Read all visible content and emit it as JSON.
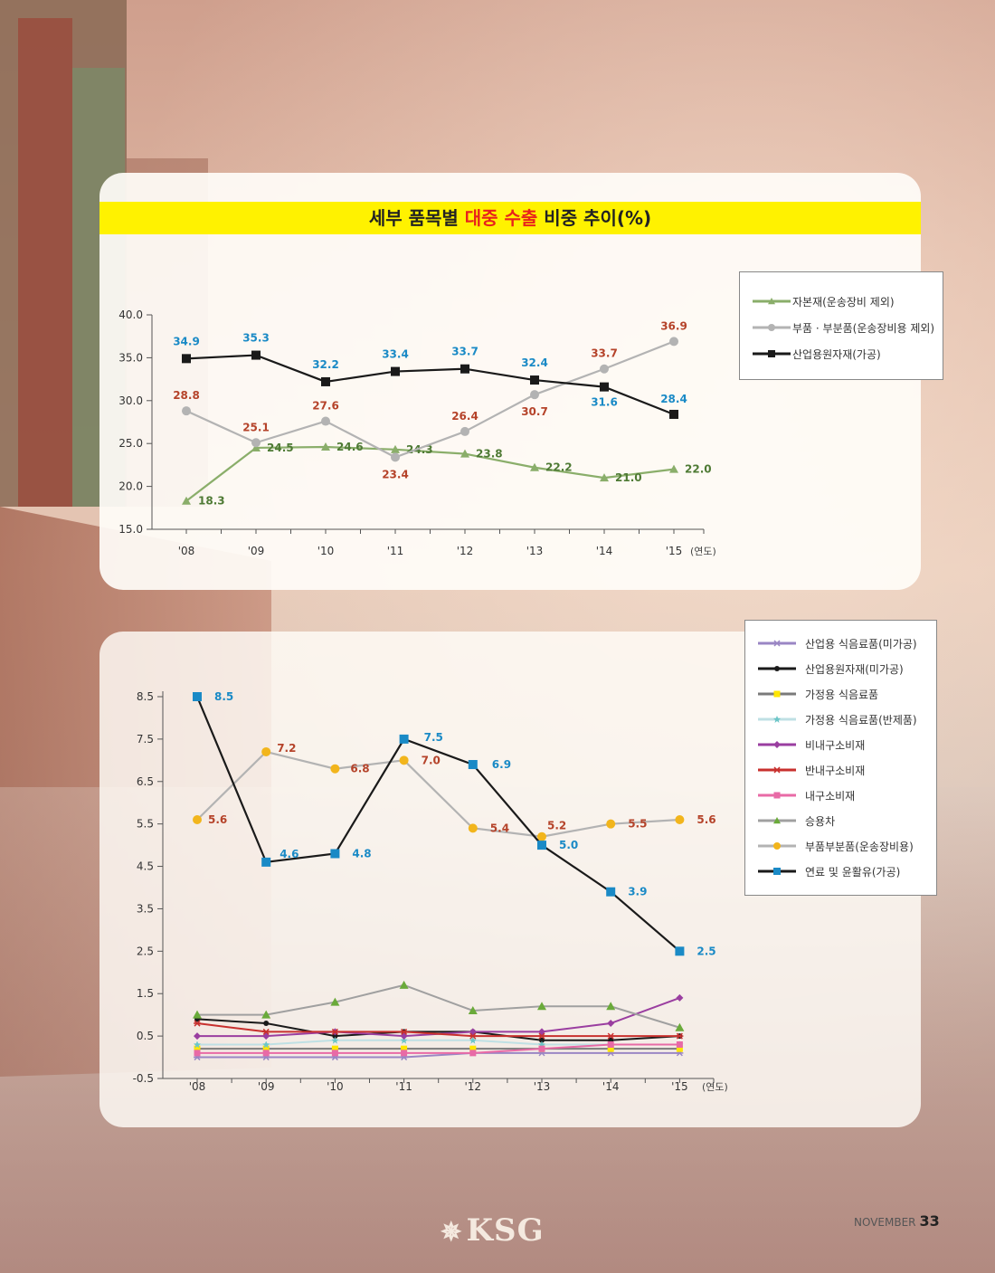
{
  "title": {
    "pre": "세부 품목별 ",
    "highlight": "대중 수출",
    "post": " 비중 추이(%)"
  },
  "chart_data": [
    {
      "type": "line",
      "categories": [
        "'08",
        "'09",
        "'10",
        "'11",
        "'12",
        "'13",
        "'14",
        "'15"
      ],
      "xlabel_unit": "(연도)",
      "ylim": [
        15.0,
        40.0
      ],
      "yticks": [
        "40.0",
        "35.0",
        "30.0",
        "25.0",
        "20.0",
        "15.0"
      ],
      "legend_position": "top-right",
      "series": [
        {
          "name": "자본재(운송장비 제외)",
          "color": "#8aae6a",
          "label_color": "#4e7a34",
          "marker": "triangle",
          "values": [
            18.3,
            24.5,
            24.6,
            24.3,
            23.8,
            22.2,
            21.0,
            22.0
          ],
          "labels": [
            "18.3",
            "24.5",
            "24.6",
            "24.3",
            "23.8",
            "22.2",
            "21.0",
            "22.0"
          ]
        },
        {
          "name": "부품 · 부분품(운송장비용 제외)",
          "color": "#b3b3b3",
          "label_color": "#b5432a",
          "marker": "circle",
          "values": [
            28.8,
            25.1,
            27.6,
            23.4,
            26.4,
            30.7,
            33.7,
            36.9
          ],
          "labels": [
            "28.8",
            "25.1",
            "27.6",
            "23.4",
            "26.4",
            "30.7",
            "33.7",
            "36.9"
          ]
        },
        {
          "name": "산업용원자재(가공)",
          "color": "#1a1a1a",
          "label_color": "#1a8ac6",
          "marker": "square",
          "values": [
            34.9,
            35.3,
            32.2,
            33.4,
            33.7,
            32.4,
            31.6,
            28.4
          ],
          "labels": [
            "34.9",
            "35.3",
            "32.2",
            "33.4",
            "33.7",
            "32.4",
            "31.6",
            "28.4"
          ]
        }
      ]
    },
    {
      "type": "line",
      "categories": [
        "'08",
        "'09",
        "'10",
        "'11",
        "'12",
        "'13",
        "'14",
        "'15"
      ],
      "xlabel_unit": "(연도)",
      "ylim": [
        -0.5,
        8.5
      ],
      "yticks": [
        "8.5",
        "7.5",
        "6.5",
        "5.5",
        "4.5",
        "3.5",
        "2.5",
        "1.5",
        "0.5",
        "-0.5"
      ],
      "legend_position": "top-right",
      "series": [
        {
          "name": "산업용 식음료품(미가공)",
          "color": "#9a86c4",
          "marker": "asterisk",
          "values": [
            0.0,
            0.0,
            0.0,
            0.0,
            0.1,
            0.1,
            0.1,
            0.1
          ]
        },
        {
          "name": "산업용원자재(미가공)",
          "color": "#1a1a1a",
          "marker": "smallcircle",
          "values": [
            0.9,
            0.8,
            0.5,
            0.6,
            0.6,
            0.4,
            0.4,
            0.5
          ]
        },
        {
          "name": "가정용 식음료품",
          "color": "#7a7a7a",
          "marker": "smallsquare",
          "marker_color": "#ffe600",
          "values": [
            0.2,
            0.2,
            0.2,
            0.2,
            0.2,
            0.2,
            0.2,
            0.2
          ]
        },
        {
          "name": "가정용 식음료품(반제품)",
          "color": "#bfe0e4",
          "marker": "star",
          "marker_color": "#6cc6c8",
          "values": [
            0.3,
            0.3,
            0.4,
            0.4,
            0.4,
            0.3,
            0.3,
            0.3
          ]
        },
        {
          "name": "비내구소비재",
          "color": "#9a3ea0",
          "marker": "diamond",
          "values": [
            0.5,
            0.5,
            0.6,
            0.5,
            0.6,
            0.6,
            0.8,
            1.4
          ]
        },
        {
          "name": "반내구소비재",
          "color": "#c8302e",
          "marker": "asterisk",
          "values": [
            0.8,
            0.6,
            0.6,
            0.6,
            0.5,
            0.5,
            0.5,
            0.5
          ]
        },
        {
          "name": "내구소비재",
          "color": "#e86aa6",
          "marker": "smallsquare",
          "values": [
            0.1,
            0.1,
            0.1,
            0.1,
            0.1,
            0.2,
            0.3,
            0.3
          ]
        },
        {
          "name": "승용차",
          "color": "#a0a0a0",
          "marker": "triangle",
          "marker_color": "#6aaa3a",
          "values": [
            1.0,
            1.0,
            1.3,
            1.7,
            1.1,
            1.2,
            1.2,
            0.7
          ]
        },
        {
          "name": "부품부분품(운송장비용)",
          "color": "#b3b3b3",
          "marker": "circle",
          "marker_color": "#f2b51c",
          "label_color": "#b5432a",
          "values": [
            5.6,
            7.2,
            6.8,
            7.0,
            5.4,
            5.2,
            5.5,
            5.6
          ],
          "labels": [
            "5.6",
            "7.2",
            "6.8",
            "7.0",
            "5.4",
            "5.2",
            "5.5",
            "5.6"
          ]
        },
        {
          "name": "연료 및 윤활유(가공)",
          "color": "#1a1a1a",
          "marker": "square",
          "marker_color": "#1a8ac6",
          "label_color": "#1a8ac6",
          "values": [
            8.5,
            4.6,
            4.8,
            7.5,
            6.9,
            5.0,
            3.9,
            2.5
          ],
          "labels": [
            "8.5",
            "4.6",
            "4.8",
            "7.5",
            "6.9",
            "5.0",
            "3.9",
            "2.5"
          ]
        }
      ]
    }
  ],
  "footer": {
    "logo": "KSG",
    "month": "NOVEMBER",
    "page": "33"
  }
}
